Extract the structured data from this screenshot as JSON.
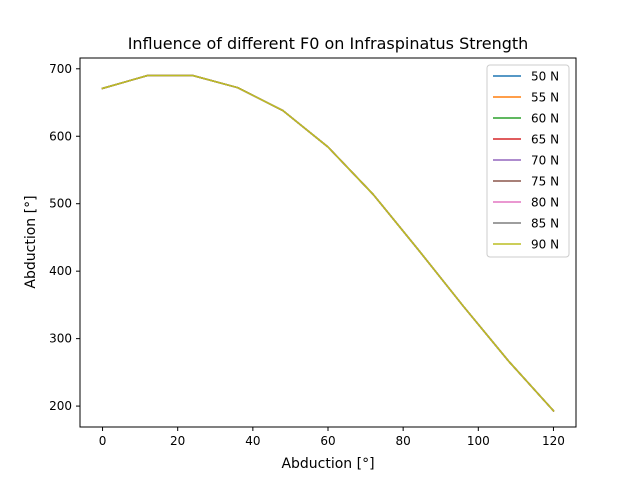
{
  "chart_data": {
    "type": "line",
    "title": "Influence of different F0 on Infraspinatus Strength",
    "xlabel": "Abduction [°]",
    "ylabel": "Abduction [°]",
    "xlim": [
      -6,
      126
    ],
    "ylim": [
      169,
      716
    ],
    "xticks": [
      0,
      20,
      40,
      60,
      80,
      100,
      120
    ],
    "yticks": [
      200,
      300,
      400,
      500,
      600,
      700
    ],
    "grid": false,
    "legend_position": "top-right",
    "x": [
      0,
      12,
      24,
      36,
      48,
      60,
      72,
      84,
      96,
      108,
      120
    ],
    "series": [
      {
        "name": "50 N",
        "color": "#1f77b4",
        "values": [
          671,
          690,
          690,
          672,
          638,
          584,
          514,
          432,
          348,
          267,
          193
        ]
      },
      {
        "name": "55 N",
        "color": "#ff7f0e",
        "values": [
          671,
          690,
          690,
          672,
          638,
          584,
          514,
          432,
          348,
          267,
          193
        ]
      },
      {
        "name": "60 N",
        "color": "#2ca02c",
        "values": [
          671,
          690,
          690,
          672,
          638,
          584,
          514,
          432,
          348,
          267,
          193
        ]
      },
      {
        "name": "65 N",
        "color": "#d62728",
        "values": [
          671,
          690,
          690,
          672,
          638,
          584,
          514,
          432,
          348,
          267,
          193
        ]
      },
      {
        "name": "70 N",
        "color": "#9467bd",
        "values": [
          671,
          690,
          690,
          672,
          638,
          584,
          514,
          432,
          348,
          267,
          193
        ]
      },
      {
        "name": "75 N",
        "color": "#8c564b",
        "values": [
          671,
          690,
          690,
          672,
          638,
          584,
          514,
          432,
          348,
          267,
          193
        ]
      },
      {
        "name": "80 N",
        "color": "#e377c2",
        "values": [
          671,
          690,
          690,
          672,
          638,
          584,
          514,
          432,
          348,
          267,
          193
        ]
      },
      {
        "name": "85 N",
        "color": "#7f7f7f",
        "values": [
          671,
          690,
          690,
          672,
          638,
          584,
          514,
          432,
          348,
          267,
          193
        ]
      },
      {
        "name": "90 N",
        "color": "#bcbd22",
        "values": [
          671,
          690,
          690,
          672,
          638,
          584,
          514,
          432,
          348,
          267,
          193
        ]
      }
    ]
  }
}
